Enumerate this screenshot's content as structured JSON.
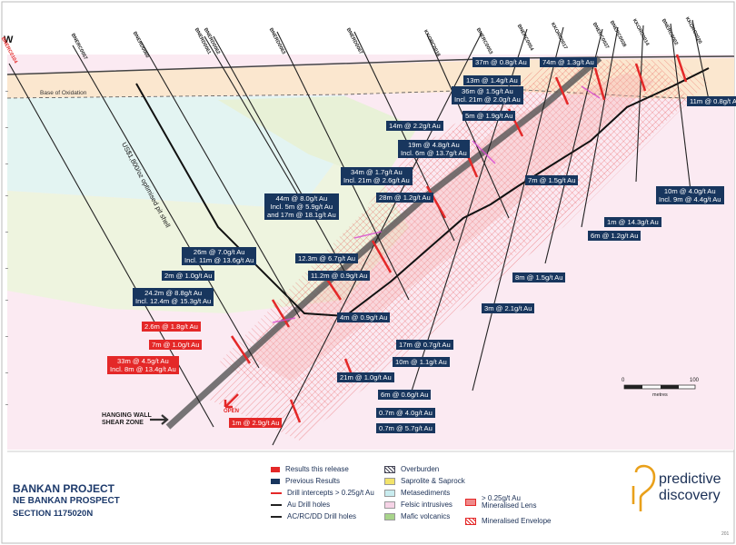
{
  "title": {
    "line1": "BANKAN PROJECT",
    "line2": "NE BANKAN PROSPECT",
    "line3": "SECTION 1175020N"
  },
  "corner_text": "W",
  "annotations": {
    "base_of_oxidation": "Base of Oxidation",
    "pit_shell": "US$1,800/oz optimised pit shell",
    "hanging_wall": "HANGING WALL\nSHEAR ZONE",
    "open": "OPEN"
  },
  "scale": {
    "zero": "0",
    "max": "100",
    "unit": "metres"
  },
  "logo": {
    "line1": "predictive",
    "line2": "discovery"
  },
  "footer_code": "201",
  "drill_holes": [
    {
      "name": "BNERC0104",
      "highlight": true
    },
    {
      "name": "BNERC0057",
      "highlight": false
    },
    {
      "name": "BNERD0060",
      "highlight": false
    },
    {
      "name": "BNERD0061",
      "highlight": false
    },
    {
      "name": "BNERD0062",
      "highlight": false
    },
    {
      "name": "BNERD0063",
      "highlight": false
    },
    {
      "name": "BNERD0067",
      "highlight": false
    },
    {
      "name": "KKORC0018",
      "highlight": false
    },
    {
      "name": "BNERC0053",
      "highlight": false
    },
    {
      "name": "BNERC0054",
      "highlight": false
    },
    {
      "name": "KKORC0017",
      "highlight": false
    },
    {
      "name": "BNERC0037",
      "highlight": false
    },
    {
      "name": "BNERC0038",
      "highlight": false
    },
    {
      "name": "KKORC0014",
      "highlight": false
    },
    {
      "name": "BNERC0002",
      "highlight": false
    },
    {
      "name": "KKORC0020",
      "highlight": false
    }
  ],
  "intercepts": [
    {
      "text": "37m @ 0.8g/t Au",
      "type": "previous"
    },
    {
      "text": "74m @ 1.3g/t Au",
      "type": "previous"
    },
    {
      "text": "13m @ 1.4g/t Au",
      "type": "previous"
    },
    {
      "text": "36m @ 1.5g/t Au\nIncl. 21m @ 2.0g/t Au",
      "type": "previous"
    },
    {
      "text": "11m @ 0.8g/t A",
      "type": "previous"
    },
    {
      "text": "5m @ 1.9g/t Au",
      "type": "previous"
    },
    {
      "text": "14m @ 2.2g/t Au",
      "type": "previous"
    },
    {
      "text": "19m @ 4.8g/t Au\nIncl. 6m @ 13.7g/t Au",
      "type": "previous"
    },
    {
      "text": "34m @ 1.7g/t Au\nIncl. 21m @ 2.6g/t Au",
      "type": "previous"
    },
    {
      "text": "7m @ 1.5g/t Au",
      "type": "previous"
    },
    {
      "text": "10m @ 4.0g/t Au\nIncl. 9m @ 4.4g/t Au",
      "type": "previous"
    },
    {
      "text": "44m @ 8.0g/t Au\nIncl. 5m @ 5.9g/t Au\nand 17m @ 18.1g/t Au",
      "type": "previous"
    },
    {
      "text": "28m @ 1.2g/t Au",
      "type": "previous"
    },
    {
      "text": "1m @ 14.3g/t Au",
      "type": "previous"
    },
    {
      "text": "6m @ 1.2g/t Au",
      "type": "previous"
    },
    {
      "text": "26m @ 7.0g/t Au\nIncl. 11m @ 13.6g/t Au",
      "type": "previous"
    },
    {
      "text": "12.3m @ 6.7g/t Au",
      "type": "previous"
    },
    {
      "text": "2m @ 1.0g/t Au",
      "type": "previous"
    },
    {
      "text": "11.2m @ 0.9g/t Au",
      "type": "previous"
    },
    {
      "text": "8m @ 1.5g/t Au",
      "type": "previous"
    },
    {
      "text": "24.2m @ 8.8g/t Au\nIncl. 12.4m @ 15.3g/t Au",
      "type": "previous"
    },
    {
      "text": "3m @ 2.1g/t Au",
      "type": "previous"
    },
    {
      "text": "4m @ 0.9g/t Au",
      "type": "previous"
    },
    {
      "text": "2.6m @ 1.8g/t Au",
      "type": "release"
    },
    {
      "text": "7m @ 1.0g/t Au",
      "type": "release"
    },
    {
      "text": "17m @ 0.7g/t Au",
      "type": "previous"
    },
    {
      "text": "33m @ 4.5g/t Au\nIncl. 8m @ 13.4g/t Au",
      "type": "release"
    },
    {
      "text": "10m @ 1.1g/t Au",
      "type": "previous"
    },
    {
      "text": "21m @ 1.0g/t Au",
      "type": "previous"
    },
    {
      "text": "6m @ 0.6g/t Au",
      "type": "previous"
    },
    {
      "text": "0.7m @ 4.0g/t Au",
      "type": "previous"
    },
    {
      "text": "0.7m @ 5.7g/t Au",
      "type": "previous"
    },
    {
      "text": "1m @ 2.9g/t Au",
      "type": "release"
    }
  ],
  "legend": {
    "col1": [
      {
        "label": "Results this release",
        "color": "#e42828"
      },
      {
        "label": "Previous Results",
        "color": "#18365e"
      },
      {
        "label": "Drill intercepts > 0.25g/t Au",
        "color": "#e42828"
      },
      {
        "label": "Au Drill holes",
        "color": "#222222"
      },
      {
        "label": "AC/RC/DD Drill holes",
        "color": "#222222"
      }
    ],
    "col2": [
      {
        "label": "Overburden",
        "color": "#6b7a8a"
      },
      {
        "label": "Saprolite & Saprock",
        "color": "#f2e36a"
      },
      {
        "label": "Metasediments",
        "color": "#c9ecef"
      },
      {
        "label": "Felsic intrusives",
        "color": "#f6d3e6"
      },
      {
        "label": "Mafic volcanics",
        "color": "#a8d48a"
      }
    ],
    "col3": [
      {
        "label": "> 0.25g/t Au\nMineralised Lens",
        "color": "#f08a8a"
      },
      {
        "label": "Mineralised Envelope",
        "color": "#e42828"
      }
    ]
  },
  "colors": {
    "navy": "#18365e",
    "red": "#e42828",
    "brand_gold": "#e9a01a"
  }
}
